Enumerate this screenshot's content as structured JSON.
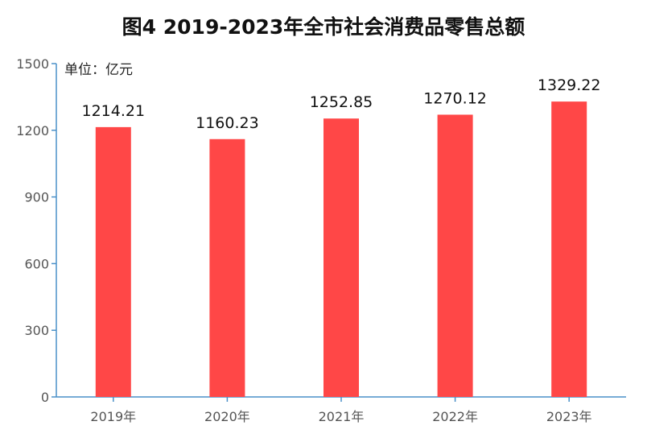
{
  "chart_data": {
    "type": "bar",
    "title": "图4  2019-2023年全市社会消费品零售总额",
    "unit_label": "单位：亿元",
    "categories": [
      "2019年",
      "2020年",
      "2021年",
      "2022年",
      "2023年"
    ],
    "values": [
      1214.21,
      1160.23,
      1252.85,
      1270.12,
      1329.22
    ],
    "value_labels": [
      "1214.21",
      "1160.23",
      "1252.85",
      "1270.12",
      "1329.22"
    ],
    "ylim": [
      0,
      1500
    ],
    "yticks": [
      0,
      300,
      600,
      900,
      1200,
      1500
    ],
    "ytick_labels": [
      "0",
      "300",
      "600",
      "900",
      "1200",
      "1500"
    ],
    "grid": false,
    "colors": {
      "bar": "#ff4747",
      "axis": "#4a90c8",
      "tick_label": "#555555",
      "value_label": "#111111"
    }
  }
}
